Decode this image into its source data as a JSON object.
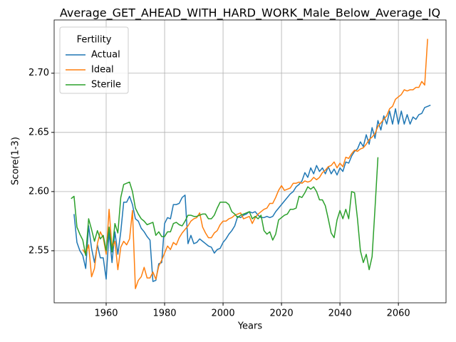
{
  "chart_data": {
    "type": "line",
    "title": "Average_GET_AHEAD_WITH_HARD_WORK_Male_Below_Average_IQ",
    "xlabel": "Years",
    "ylabel": "Score(1-3)",
    "legend_title": "Fertility",
    "legend": "upper left",
    "grid": true,
    "xlim": [
      1942.2,
      2076.3
    ],
    "ylim": [
      2.506,
      2.745
    ],
    "xticks": [
      1960,
      1980,
      2000,
      2020,
      2040,
      2060
    ],
    "yticks": [
      2.55,
      {
        "value": 2.6,
        "label": "2.60"
      },
      2.65,
      {
        "value": 2.7,
        "label": "2.70"
      }
    ],
    "x": [
      1948,
      1949,
      1950,
      1951,
      1952,
      1953,
      1954,
      1955,
      1956,
      1957,
      1958,
      1959,
      1960,
      1961,
      1962,
      1963,
      1964,
      1965,
      1966,
      1967,
      1968,
      1969,
      1970,
      1971,
      1972,
      1973,
      1974,
      1975,
      1976,
      1977,
      1978,
      1979,
      1980,
      1981,
      1982,
      1983,
      1984,
      1985,
      1986,
      1987,
      1988,
      1989,
      1990,
      1991,
      1992,
      1993,
      1994,
      1995,
      1996,
      1997,
      1998,
      1999,
      2000,
      2001,
      2002,
      2003,
      2004,
      2005,
      2006,
      2007,
      2008,
      2009,
      2010,
      2011,
      2012,
      2013,
      2014,
      2015,
      2016,
      2017,
      2018,
      2019,
      2020,
      2021,
      2022,
      2023,
      2024,
      2025,
      2026,
      2027,
      2028,
      2029,
      2030,
      2031,
      2032,
      2033,
      2034,
      2035,
      2036,
      2037,
      2038,
      2039,
      2040,
      2041,
      2042,
      2043,
      2044,
      2045,
      2046,
      2047,
      2048,
      2049,
      2050,
      2051,
      2052,
      2053,
      2054,
      2055,
      2056,
      2057,
      2058,
      2059,
      2060,
      2061,
      2062,
      2063,
      2064,
      2065,
      2066,
      2067,
      2068,
      2069,
      2070,
      2071
    ],
    "series": [
      {
        "name": "Actual",
        "color": "#1f77b4",
        "values": [
          null,
          2.581,
          2.557,
          2.55,
          2.546,
          2.535,
          2.571,
          2.552,
          2.54,
          2.555,
          2.544,
          2.544,
          2.526,
          2.566,
          2.54,
          2.566,
          2.547,
          2.566,
          2.591,
          2.591,
          2.596,
          2.589,
          2.577,
          2.575,
          2.569,
          2.566,
          2.562,
          2.559,
          2.524,
          2.525,
          2.539,
          2.54,
          2.573,
          2.578,
          2.577,
          2.589,
          2.589,
          2.59,
          2.595,
          2.597,
          2.556,
          2.563,
          2.556,
          2.557,
          2.56,
          2.558,
          2.556,
          2.554,
          2.553,
          2.548,
          2.551,
          2.552,
          2.557,
          2.56,
          2.564,
          2.567,
          2.571,
          2.579,
          2.578,
          2.58,
          2.581,
          2.583,
          2.582,
          2.583,
          2.58,
          2.578,
          2.578,
          2.579,
          2.578,
          2.579,
          2.583,
          2.586,
          2.589,
          2.592,
          2.595,
          2.598,
          2.6,
          2.604,
          2.606,
          2.609,
          2.616,
          2.612,
          2.62,
          2.615,
          2.622,
          2.617,
          2.62,
          2.615,
          2.621,
          2.615,
          2.619,
          2.614,
          2.62,
          2.617,
          2.625,
          2.624,
          2.63,
          2.634,
          2.636,
          2.642,
          2.638,
          2.648,
          2.64,
          2.654,
          2.645,
          2.66,
          2.652,
          2.664,
          2.657,
          2.668,
          2.657,
          2.67,
          2.657,
          2.668,
          2.657,
          2.665,
          2.657,
          2.663,
          2.661,
          2.665,
          2.666,
          2.671,
          2.672,
          2.673
        ]
      },
      {
        "name": "Ideal",
        "color": "#ff7f0e",
        "values": [
          null,
          null,
          null,
          null,
          2.551,
          2.547,
          2.555,
          2.528,
          2.535,
          2.556,
          2.566,
          2.561,
          2.547,
          2.585,
          2.552,
          2.558,
          2.534,
          2.553,
          2.558,
          2.555,
          2.56,
          2.584,
          2.518,
          2.525,
          2.528,
          2.536,
          2.527,
          2.527,
          2.532,
          2.526,
          2.537,
          2.542,
          2.548,
          2.554,
          2.551,
          2.557,
          2.555,
          2.561,
          2.565,
          2.568,
          2.571,
          2.575,
          2.577,
          2.578,
          2.582,
          2.57,
          2.565,
          2.561,
          2.561,
          2.565,
          2.567,
          2.572,
          2.575,
          2.575,
          2.577,
          2.578,
          2.58,
          2.581,
          2.582,
          2.577,
          2.578,
          2.579,
          2.573,
          2.578,
          2.581,
          2.583,
          2.585,
          2.586,
          2.59,
          2.59,
          2.595,
          2.601,
          2.605,
          2.601,
          2.602,
          2.603,
          2.607,
          2.607,
          2.608,
          2.607,
          2.609,
          2.608,
          2.609,
          2.612,
          2.61,
          2.612,
          2.616,
          2.618,
          2.621,
          2.622,
          2.625,
          2.62,
          2.624,
          2.621,
          2.629,
          2.628,
          2.632,
          2.635,
          2.634,
          2.636,
          2.637,
          2.64,
          2.644,
          2.646,
          2.649,
          2.655,
          2.658,
          2.661,
          2.664,
          2.67,
          2.672,
          2.678,
          2.68,
          2.682,
          2.686,
          2.685,
          2.686,
          2.686,
          2.688,
          2.688,
          2.693,
          2.69,
          2.729,
          null
        ]
      },
      {
        "name": "Sterile",
        "color": "#2ca02c",
        "values": [
          2.594,
          2.596,
          2.57,
          2.564,
          2.559,
          2.546,
          2.577,
          2.568,
          2.558,
          2.567,
          2.56,
          2.563,
          2.55,
          2.57,
          2.549,
          2.573,
          2.565,
          2.595,
          2.606,
          2.607,
          2.608,
          2.6,
          2.586,
          2.581,
          2.577,
          2.575,
          2.572,
          2.573,
          2.574,
          2.563,
          2.566,
          2.562,
          2.562,
          2.566,
          2.566,
          2.573,
          2.574,
          2.572,
          2.571,
          2.575,
          2.58,
          2.58,
          2.579,
          2.579,
          2.58,
          2.581,
          2.581,
          2.577,
          2.577,
          2.58,
          2.586,
          2.591,
          2.591,
          2.591,
          2.589,
          2.583,
          2.581,
          2.578,
          2.58,
          2.581,
          2.582,
          2.583,
          2.577,
          2.579,
          2.577,
          2.58,
          2.567,
          2.564,
          2.566,
          2.559,
          2.564,
          2.576,
          2.578,
          2.58,
          2.581,
          2.585,
          2.585,
          2.586,
          2.596,
          2.595,
          2.599,
          2.604,
          2.602,
          2.604,
          2.6,
          2.593,
          2.593,
          2.588,
          2.577,
          2.565,
          2.561,
          2.576,
          2.584,
          2.577,
          2.585,
          2.577,
          2.6,
          2.599,
          2.577,
          2.55,
          2.54,
          2.547,
          2.534,
          2.545,
          2.586,
          2.629,
          null,
          null,
          null,
          null,
          null,
          null,
          null,
          null,
          null,
          null,
          null,
          null,
          null,
          null,
          null,
          null,
          null,
          null
        ]
      }
    ]
  }
}
